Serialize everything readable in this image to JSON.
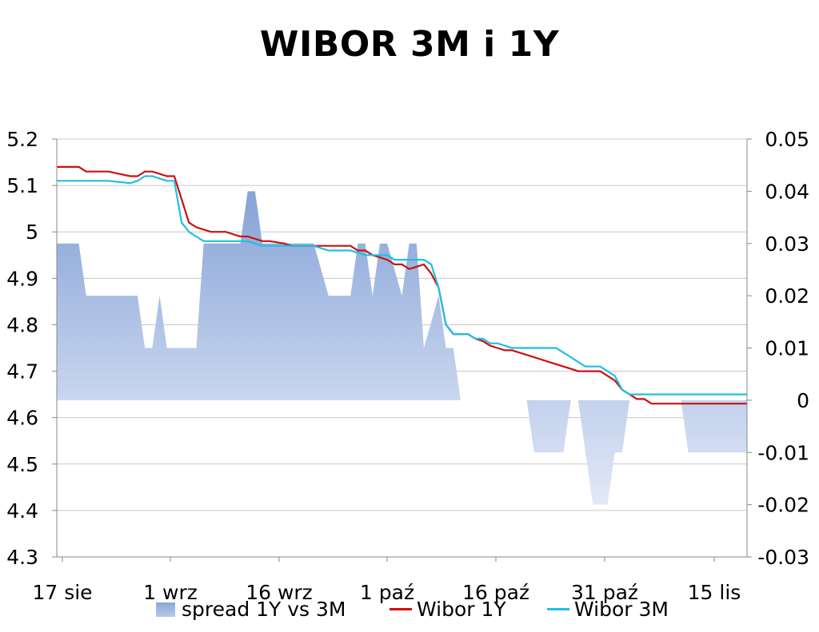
{
  "chart_data": {
    "type": "line",
    "title": "WIBOR 3M i 1Y",
    "categories": [
      "17 sie",
      "1 wrz",
      "16 wrz",
      "1 paź",
      "16 paź",
      "31 paź",
      "15 lis"
    ],
    "ylim": [
      4.3,
      5.2
    ],
    "yticks": [
      "5.2",
      "5.1",
      "5",
      "4.9",
      "4.8",
      "4.7",
      "4.6",
      "4.5",
      "4.4",
      "4.3"
    ],
    "y2lim": [
      -0.03,
      0.05
    ],
    "y2ticks": [
      "0.05",
      "0.04",
      "0.03",
      "0.02",
      "0.01",
      "0",
      "-0.01",
      "-0.02",
      "-0.03"
    ],
    "grid": true,
    "legend_position": "bottom",
    "series": [
      {
        "name": "spread 1Y vs 3M",
        "kind": "area",
        "axis": "right",
        "color": "#8eaadb",
        "x": [
          0,
          3,
          4,
          5,
          6,
          7,
          8,
          9,
          10,
          11,
          12,
          13,
          14,
          15,
          16,
          17,
          18,
          19,
          20,
          21,
          22,
          23,
          24,
          25,
          26,
          27,
          28,
          29,
          30,
          31,
          32,
          33,
          34,
          35,
          36,
          37,
          38,
          39,
          40,
          41,
          42,
          43,
          44,
          45,
          46,
          47,
          48,
          49,
          50,
          51,
          52,
          53,
          54,
          55,
          56,
          57,
          58,
          59,
          60,
          61,
          62,
          63,
          64,
          65,
          66,
          67,
          68,
          69,
          70,
          71,
          72,
          73,
          74,
          75,
          76,
          77,
          78,
          79,
          80,
          81,
          82,
          83,
          84,
          85,
          86,
          87,
          88,
          89,
          90,
          91,
          92,
          93,
          94
        ],
        "values": [
          0.03,
          0.03,
          0.02,
          0.02,
          0.02,
          0.02,
          0.02,
          0.02,
          0.02,
          0.02,
          0.01,
          0.01,
          0.02,
          0.01,
          0.01,
          0.01,
          0.01,
          0.01,
          0.03,
          0.03,
          0.03,
          0.03,
          0.03,
          0.03,
          0.04,
          0.04,
          0.03,
          0.03,
          0.03,
          0.03,
          0.03,
          0.03,
          0.03,
          0.03,
          0.025,
          0.02,
          0.02,
          0.02,
          0.02,
          0.03,
          0.03,
          0.02,
          0.03,
          0.03,
          0.025,
          0.02,
          0.03,
          0.03,
          0.01,
          0.015,
          0.02,
          0.01,
          0.01,
          0,
          0,
          0,
          0,
          0,
          0,
          0,
          0,
          0,
          0,
          -0.01,
          -0.01,
          -0.01,
          -0.01,
          -0.01,
          0,
          0,
          -0.01,
          -0.02,
          -0.02,
          -0.02,
          -0.01,
          -0.01,
          0,
          0,
          0,
          0,
          0,
          0,
          0,
          0,
          -0.01,
          -0.01,
          -0.01,
          -0.01,
          -0.01,
          -0.01,
          -0.01,
          -0.01,
          -0.01
        ]
      },
      {
        "name": "Wibor 1Y",
        "kind": "line",
        "axis": "left",
        "color": "#cc1010",
        "x": [
          0,
          3,
          4,
          7,
          10,
          11,
          12,
          13,
          14,
          15,
          16,
          17,
          18,
          19,
          20,
          21,
          22,
          23,
          25,
          26,
          28,
          29,
          31,
          32,
          34,
          35,
          37,
          38,
          40,
          41,
          42,
          43,
          44,
          45,
          46,
          47,
          48,
          49,
          50,
          51,
          52,
          53,
          54,
          55,
          56,
          57,
          58,
          59,
          60,
          61,
          62,
          63,
          64,
          65,
          66,
          67,
          68,
          69,
          70,
          71,
          72,
          73,
          74,
          75,
          76,
          77,
          78,
          79,
          80,
          81,
          82,
          83,
          84,
          85,
          86,
          87,
          88,
          89,
          90,
          91,
          92,
          93,
          94
        ],
        "values": [
          5.14,
          5.14,
          5.13,
          5.13,
          5.12,
          5.12,
          5.13,
          5.13,
          5.125,
          5.12,
          5.12,
          5.07,
          5.02,
          5.01,
          5.005,
          5.0,
          5.0,
          5.0,
          4.99,
          4.99,
          4.98,
          4.98,
          4.975,
          4.97,
          4.97,
          4.97,
          4.97,
          4.97,
          4.97,
          4.96,
          4.96,
          4.95,
          4.945,
          4.94,
          4.93,
          4.93,
          4.92,
          4.925,
          4.93,
          4.91,
          4.88,
          4.8,
          4.78,
          4.78,
          4.78,
          4.77,
          4.765,
          4.755,
          4.75,
          4.745,
          4.745,
          4.74,
          4.735,
          4.73,
          4.725,
          4.72,
          4.715,
          4.71,
          4.705,
          4.7,
          4.7,
          4.7,
          4.7,
          4.69,
          4.68,
          4.66,
          4.65,
          4.64,
          4.64,
          4.63,
          4.63,
          4.63,
          4.63,
          4.63,
          4.63,
          4.63,
          4.63,
          4.63,
          4.63,
          4.63,
          4.63,
          4.63,
          4.63
        ]
      },
      {
        "name": "Wibor 3M",
        "kind": "line",
        "axis": "left",
        "color": "#1ebfe6",
        "x": [
          0,
          3,
          4,
          7,
          10,
          11,
          12,
          13,
          14,
          15,
          16,
          17,
          18,
          19,
          20,
          21,
          22,
          23,
          25,
          26,
          28,
          29,
          31,
          32,
          34,
          35,
          37,
          38,
          40,
          41,
          42,
          43,
          44,
          45,
          46,
          47,
          48,
          49,
          50,
          51,
          52,
          53,
          54,
          55,
          56,
          57,
          58,
          59,
          60,
          61,
          62,
          63,
          64,
          65,
          66,
          67,
          68,
          69,
          70,
          71,
          72,
          73,
          74,
          75,
          76,
          77,
          78,
          79,
          80,
          81,
          82,
          83,
          84,
          85,
          86,
          87,
          88,
          89,
          90,
          91,
          92,
          93,
          94
        ],
        "values": [
          5.11,
          5.11,
          5.11,
          5.11,
          5.105,
          5.11,
          5.12,
          5.12,
          5.115,
          5.11,
          5.11,
          5.02,
          5.0,
          4.99,
          4.98,
          4.98,
          4.98,
          4.98,
          4.98,
          4.98,
          4.97,
          4.97,
          4.97,
          4.97,
          4.97,
          4.97,
          4.96,
          4.96,
          4.96,
          4.955,
          4.95,
          4.95,
          4.95,
          4.95,
          4.94,
          4.94,
          4.94,
          4.94,
          4.94,
          4.93,
          4.88,
          4.8,
          4.78,
          4.78,
          4.78,
          4.77,
          4.77,
          4.76,
          4.76,
          4.755,
          4.75,
          4.75,
          4.75,
          4.75,
          4.75,
          4.75,
          4.75,
          4.74,
          4.73,
          4.72,
          4.71,
          4.71,
          4.71,
          4.7,
          4.69,
          4.66,
          4.65,
          4.65,
          4.65,
          4.65,
          4.65,
          4.65,
          4.65,
          4.65,
          4.65,
          4.65,
          4.65,
          4.65,
          4.65,
          4.65,
          4.65,
          4.65,
          4.65
        ]
      }
    ]
  },
  "legend": {
    "items": [
      {
        "label": "spread 1Y vs 3M"
      },
      {
        "label": "Wibor 1Y",
        "color": "#cc1010"
      },
      {
        "label": "Wibor 3M",
        "color": "#1ebfe6"
      }
    ]
  }
}
